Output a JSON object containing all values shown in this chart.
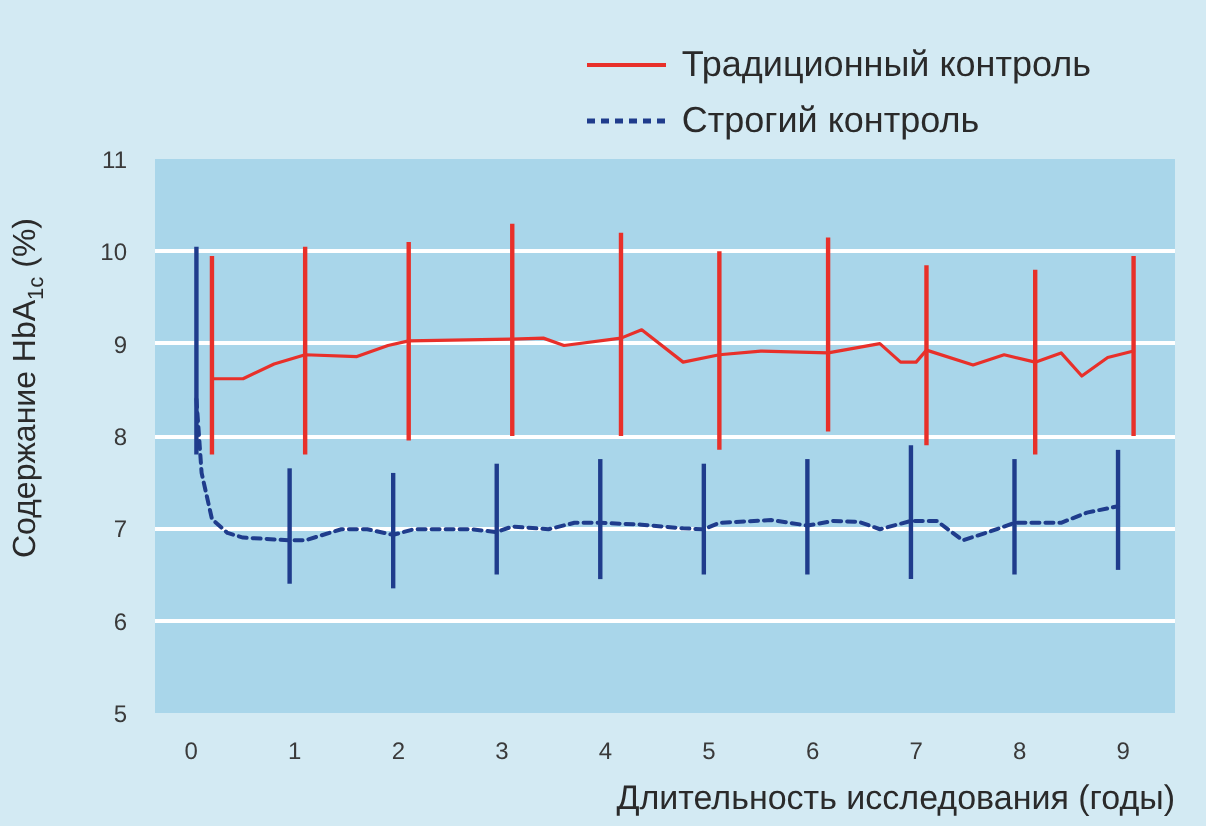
{
  "chart_data": {
    "type": "line",
    "xlabel": "Длительность исследования (годы)",
    "ylabel": "Содержание HbA$_{1c}$ (%)",
    "xlim": [
      -0.35,
      9.5
    ],
    "ylim": [
      5,
      11
    ],
    "xticks": [
      0,
      1,
      2,
      3,
      4,
      5,
      6,
      7,
      8,
      9
    ],
    "yticks": [
      5,
      6,
      7,
      8,
      9,
      10,
      11
    ],
    "grid": "y",
    "legend": "top right",
    "series": [
      {
        "name": "Традиционный контроль",
        "color": "#e8302a",
        "line_style": "solid",
        "x": [
          0.2,
          0.5,
          0.8,
          1.1,
          1.6,
          1.9,
          2.1,
          3.1,
          3.4,
          3.6,
          4.15,
          4.35,
          4.75,
          5.1,
          5.5,
          6.15,
          6.65,
          6.85,
          7.0,
          7.1,
          7.55,
          7.85,
          8.15,
          8.4,
          8.6,
          8.85,
          9.1
        ],
        "values": [
          8.62,
          8.62,
          8.78,
          8.88,
          8.86,
          8.98,
          9.03,
          9.05,
          9.06,
          8.98,
          9.06,
          9.15,
          8.8,
          8.88,
          8.92,
          8.9,
          9.0,
          8.8,
          8.8,
          8.93,
          8.77,
          8.88,
          8.8,
          8.9,
          8.65,
          8.85,
          8.92
        ],
        "errors": [
          [
            7.8,
            9.95
          ],
          null,
          null,
          [
            7.8,
            10.05
          ],
          null,
          null,
          [
            7.95,
            10.1
          ],
          [
            8.0,
            10.3
          ],
          null,
          null,
          [
            8.0,
            10.2
          ],
          null,
          null,
          [
            7.85,
            10.0
          ],
          null,
          [
            8.05,
            10.15
          ],
          null,
          null,
          null,
          [
            7.9,
            9.85
          ],
          null,
          null,
          [
            7.8,
            9.8
          ],
          null,
          null,
          null,
          [
            8.0,
            9.95
          ]
        ]
      },
      {
        "name": "Строгий контроль",
        "color": "#1f3c8c",
        "line_style": "dashed",
        "x": [
          0.05,
          0.1,
          0.2,
          0.35,
          0.5,
          0.95,
          1.1,
          1.45,
          1.7,
          1.95,
          2.15,
          2.7,
          2.95,
          3.1,
          3.45,
          3.7,
          3.95,
          4.35,
          4.75,
          4.95,
          5.1,
          5.6,
          5.95,
          6.2,
          6.45,
          6.65,
          6.95,
          7.2,
          7.45,
          7.7,
          7.95,
          8.4,
          8.65,
          8.95
        ],
        "values": [
          8.4,
          7.6,
          7.1,
          6.95,
          6.9,
          6.87,
          6.87,
          6.99,
          6.99,
          6.93,
          6.99,
          6.99,
          6.96,
          7.02,
          6.99,
          7.06,
          7.06,
          7.04,
          7.0,
          6.99,
          7.06,
          7.09,
          7.03,
          7.08,
          7.07,
          6.99,
          7.08,
          7.08,
          6.87,
          6.96,
          7.06,
          7.06,
          7.17,
          7.24
        ],
        "errors": [
          [
            7.8,
            10.05
          ],
          null,
          null,
          null,
          null,
          [
            6.4,
            7.65
          ],
          null,
          null,
          null,
          [
            6.35,
            7.6
          ],
          null,
          null,
          [
            6.5,
            7.7
          ],
          null,
          null,
          null,
          [
            6.45,
            7.75
          ],
          null,
          null,
          [
            6.5,
            7.7
          ],
          null,
          null,
          [
            6.5,
            7.75
          ],
          null,
          null,
          null,
          [
            6.45,
            7.9
          ],
          null,
          null,
          null,
          [
            6.5,
            7.75
          ],
          null,
          null,
          [
            6.55,
            7.85
          ]
        ]
      }
    ]
  }
}
